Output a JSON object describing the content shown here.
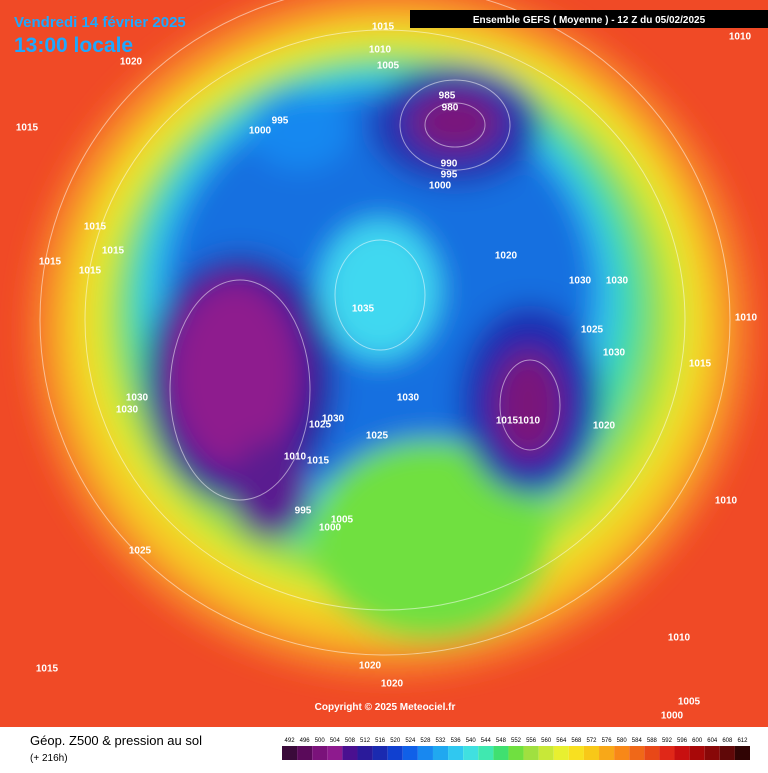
{
  "header": {
    "date": "Vendredi 14 février 2025",
    "time": "13:00 locale",
    "run": "Ensemble GEFS  ( Moyenne )  -  12 Z du 05/02/2025"
  },
  "footer": {
    "title": "Géop. Z500 & pression au sol",
    "lead": "(+ 216h)",
    "copyright": "Copyright © 2025 Meteociel.fr"
  },
  "scale": {
    "values": [
      492,
      496,
      500,
      504,
      508,
      512,
      516,
      520,
      524,
      528,
      532,
      536,
      540,
      544,
      548,
      552,
      556,
      560,
      564,
      568,
      572,
      576,
      580,
      584,
      588,
      592,
      596,
      600,
      604,
      608,
      612
    ],
    "colors": [
      "#3a0a3a",
      "#5a0a5a",
      "#7a127a",
      "#8e1a8e",
      "#4a1090",
      "#2a1a9a",
      "#1a2ab0",
      "#1040d0",
      "#1060e8",
      "#1888f0",
      "#20a8f0",
      "#30c8f0",
      "#40e0e0",
      "#40e8b0",
      "#40e070",
      "#70e040",
      "#a0e040",
      "#c8e838",
      "#e8f030",
      "#f8e020",
      "#f8c818",
      "#f8a818",
      "#f88818",
      "#f06818",
      "#e84818",
      "#e02818",
      "#c81010",
      "#a80808",
      "#880808",
      "#600808",
      "#300404"
    ]
  },
  "isobar_labels": [
    1015,
    1010,
    1005,
    1010,
    1020,
    1015,
    995,
    1000,
    985,
    980,
    990,
    995,
    1000,
    1015,
    1015,
    1015,
    1015,
    1020,
    1030,
    1030,
    1035,
    1010,
    1025,
    1030,
    1015,
    1030,
    1030,
    1030,
    1030,
    1025,
    1025,
    1015,
    1010,
    1020,
    1010,
    1015,
    995,
    1005,
    1000,
    1010,
    1025,
    1015,
    1010,
    1020,
    1020,
    1005,
    1000
  ]
}
